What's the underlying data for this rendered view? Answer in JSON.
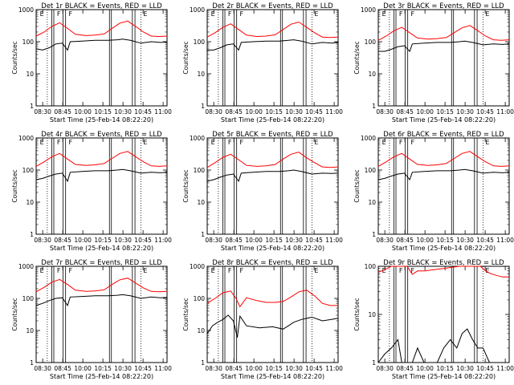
{
  "figure": {
    "xlabel": "Start Time (25-Feb-14 08:22:20)",
    "ylabel": "Counts/sec",
    "x_ticks": [
      "08:30",
      "08:45",
      "10:00",
      "10:15",
      "10:30",
      "10:45",
      "11:00"
    ],
    "y_ticks": [
      "1",
      "10",
      "100",
      "1000"
    ],
    "colors": {
      "events": "#000000",
      "lld": "#ff0000",
      "axes": "#000000",
      "background": "#ffffff"
    }
  },
  "chart_data": [
    {
      "type": "line",
      "title": "Det 1r BLACK = Events, RED = LLD",
      "x_ticks": [
        "08:30",
        "08:45",
        "10:00",
        "10:15",
        "10:30",
        "10:45",
        "11:00"
      ],
      "ylim": [
        1,
        1000
      ],
      "yscale": "log",
      "markers": [
        "E",
        "F",
        "F",
        "E"
      ],
      "series": [
        {
          "name": "Events",
          "color": "#000000",
          "x": [
            0.0,
            0.05,
            0.1,
            0.15,
            0.2,
            0.24,
            0.26,
            0.35,
            0.45,
            0.55,
            0.62,
            0.66,
            0.72,
            0.8,
            0.88,
            0.95,
            1.0
          ],
          "y": [
            60,
            55,
            65,
            85,
            90,
            55,
            100,
            105,
            110,
            110,
            115,
            120,
            110,
            90,
            100,
            95,
            98
          ]
        },
        {
          "name": "LLD",
          "color": "#ff0000",
          "x": [
            0.0,
            0.06,
            0.12,
            0.18,
            0.24,
            0.3,
            0.38,
            0.45,
            0.52,
            0.58,
            0.64,
            0.7,
            0.76,
            0.82,
            0.88,
            0.94,
            1.0
          ],
          "y": [
            150,
            200,
            300,
            390,
            260,
            170,
            155,
            160,
            175,
            260,
            380,
            440,
            300,
            200,
            150,
            145,
            150
          ]
        }
      ]
    },
    {
      "type": "line",
      "title": "Det 2r BLACK = Events, RED = LLD",
      "x_ticks": [
        "08:30",
        "08:45",
        "10:00",
        "10:15",
        "10:30",
        "10:45",
        "11:00"
      ],
      "ylim": [
        1,
        1000
      ],
      "yscale": "log",
      "markers": [
        "E",
        "F",
        "F",
        "E"
      ],
      "series": [
        {
          "name": "Events",
          "color": "#000000",
          "x": [
            0.0,
            0.05,
            0.1,
            0.15,
            0.2,
            0.24,
            0.26,
            0.35,
            0.45,
            0.55,
            0.62,
            0.66,
            0.72,
            0.8,
            0.88,
            0.95,
            1.0
          ],
          "y": [
            55,
            55,
            65,
            80,
            85,
            55,
            95,
            100,
            105,
            105,
            110,
            115,
            105,
            85,
            95,
            90,
            95
          ]
        },
        {
          "name": "LLD",
          "color": "#ff0000",
          "x": [
            0.0,
            0.06,
            0.12,
            0.18,
            0.24,
            0.3,
            0.38,
            0.45,
            0.52,
            0.58,
            0.64,
            0.7,
            0.76,
            0.82,
            0.88,
            0.94,
            1.0
          ],
          "y": [
            140,
            190,
            280,
            360,
            240,
            160,
            145,
            150,
            165,
            240,
            350,
            410,
            280,
            190,
            140,
            135,
            140
          ]
        }
      ]
    },
    {
      "type": "line",
      "title": "Det 3r BLACK = Events, RED = LLD",
      "x_ticks": [
        "08:30",
        "08:45",
        "10:00",
        "10:15",
        "10:30",
        "10:45",
        "11:00"
      ],
      "ylim": [
        1,
        1000
      ],
      "yscale": "log",
      "markers": [
        "E",
        "F",
        "F",
        "E"
      ],
      "series": [
        {
          "name": "Events",
          "color": "#000000",
          "x": [
            0.0,
            0.05,
            0.1,
            0.15,
            0.2,
            0.24,
            0.26,
            0.35,
            0.45,
            0.55,
            0.62,
            0.66,
            0.72,
            0.8,
            0.88,
            0.95,
            1.0
          ],
          "y": [
            50,
            50,
            58,
            70,
            75,
            50,
            85,
            90,
            95,
            95,
            100,
            105,
            95,
            80,
            85,
            82,
            85
          ]
        },
        {
          "name": "LLD",
          "color": "#ff0000",
          "x": [
            0.0,
            0.06,
            0.12,
            0.18,
            0.24,
            0.3,
            0.38,
            0.45,
            0.52,
            0.58,
            0.64,
            0.7,
            0.76,
            0.82,
            0.88,
            0.94,
            1.0
          ],
          "y": [
            110,
            150,
            220,
            280,
            190,
            130,
            120,
            125,
            135,
            190,
            270,
            320,
            220,
            150,
            115,
            110,
            115
          ]
        }
      ]
    },
    {
      "type": "line",
      "title": "Det 4r BLACK = Events, RED = LLD",
      "x_ticks": [
        "08:30",
        "08:45",
        "10:00",
        "10:15",
        "10:30",
        "10:45",
        "11:00"
      ],
      "ylim": [
        1,
        1000
      ],
      "yscale": "log",
      "markers": [
        "E",
        "F",
        "F",
        "E"
      ],
      "series": [
        {
          "name": "Events",
          "color": "#000000",
          "x": [
            0.0,
            0.05,
            0.1,
            0.15,
            0.2,
            0.24,
            0.26,
            0.35,
            0.45,
            0.55,
            0.62,
            0.66,
            0.72,
            0.8,
            0.88,
            0.95,
            1.0
          ],
          "y": [
            50,
            55,
            65,
            75,
            80,
            45,
            85,
            90,
            95,
            95,
            100,
            105,
            95,
            80,
            85,
            82,
            85
          ]
        },
        {
          "name": "LLD",
          "color": "#ff0000",
          "x": [
            0.0,
            0.06,
            0.12,
            0.18,
            0.24,
            0.3,
            0.38,
            0.45,
            0.52,
            0.58,
            0.64,
            0.7,
            0.76,
            0.82,
            0.88,
            0.94,
            1.0
          ],
          "y": [
            130,
            180,
            260,
            330,
            220,
            150,
            140,
            145,
            160,
            230,
            330,
            380,
            260,
            180,
            135,
            130,
            135
          ]
        }
      ]
    },
    {
      "type": "line",
      "title": "Det 5r BLACK = Events, RED = LLD",
      "x_ticks": [
        "08:30",
        "08:45",
        "10:00",
        "10:15",
        "10:30",
        "10:45",
        "11:00"
      ],
      "ylim": [
        1,
        1000
      ],
      "yscale": "log",
      "markers": [
        "E",
        "F",
        "F",
        "E"
      ],
      "series": [
        {
          "name": "Events",
          "color": "#000000",
          "x": [
            0.0,
            0.05,
            0.1,
            0.15,
            0.2,
            0.24,
            0.26,
            0.35,
            0.45,
            0.55,
            0.62,
            0.66,
            0.72,
            0.8,
            0.88,
            0.95,
            1.0
          ],
          "y": [
            45,
            50,
            60,
            70,
            75,
            45,
            80,
            85,
            90,
            90,
            95,
            100,
            90,
            75,
            80,
            78,
            80
          ]
        },
        {
          "name": "LLD",
          "color": "#ff0000",
          "x": [
            0.0,
            0.06,
            0.12,
            0.18,
            0.24,
            0.3,
            0.38,
            0.45,
            0.52,
            0.58,
            0.64,
            0.7,
            0.76,
            0.82,
            0.88,
            0.94,
            1.0
          ],
          "y": [
            120,
            170,
            250,
            310,
            210,
            140,
            130,
            135,
            150,
            220,
            310,
            360,
            240,
            170,
            125,
            120,
            125
          ]
        }
      ]
    },
    {
      "type": "line",
      "title": "Det 6r BLACK = Events, RED = LLD",
      "x_ticks": [
        "08:30",
        "08:45",
        "10:00",
        "10:15",
        "10:30",
        "10:45",
        "11:00"
      ],
      "ylim": [
        1,
        1000
      ],
      "yscale": "log",
      "markers": [
        "E",
        "F",
        "F",
        "E"
      ],
      "series": [
        {
          "name": "Events",
          "color": "#000000",
          "x": [
            0.0,
            0.05,
            0.1,
            0.15,
            0.2,
            0.24,
            0.26,
            0.35,
            0.45,
            0.55,
            0.62,
            0.66,
            0.72,
            0.8,
            0.88,
            0.95,
            1.0
          ],
          "y": [
            50,
            55,
            65,
            75,
            80,
            50,
            85,
            90,
            95,
            95,
            100,
            105,
            95,
            80,
            85,
            82,
            85
          ]
        },
        {
          "name": "LLD",
          "color": "#ff0000",
          "x": [
            0.0,
            0.06,
            0.12,
            0.18,
            0.24,
            0.3,
            0.38,
            0.45,
            0.52,
            0.58,
            0.64,
            0.7,
            0.76,
            0.82,
            0.88,
            0.94,
            1.0
          ],
          "y": [
            130,
            180,
            260,
            330,
            220,
            150,
            140,
            145,
            160,
            230,
            330,
            380,
            260,
            180,
            135,
            130,
            135
          ]
        }
      ]
    },
    {
      "type": "line",
      "title": "Det 7r BLACK = Events, RED = LLD",
      "x_ticks": [
        "08:30",
        "08:45",
        "10:00",
        "10:15",
        "10:30",
        "10:45",
        "11:00"
      ],
      "ylim": [
        1,
        1000
      ],
      "yscale": "log",
      "markers": [
        "E",
        "F",
        "F",
        "E"
      ],
      "series": [
        {
          "name": "Events",
          "color": "#000000",
          "x": [
            0.0,
            0.05,
            0.1,
            0.15,
            0.2,
            0.24,
            0.26,
            0.35,
            0.45,
            0.55,
            0.62,
            0.66,
            0.72,
            0.8,
            0.88,
            0.95,
            1.0
          ],
          "y": [
            60,
            70,
            85,
            100,
            105,
            60,
            110,
            115,
            120,
            120,
            125,
            130,
            120,
            100,
            110,
            105,
            108
          ]
        },
        {
          "name": "LLD",
          "color": "#ff0000",
          "x": [
            0.0,
            0.06,
            0.12,
            0.18,
            0.24,
            0.3,
            0.38,
            0.45,
            0.52,
            0.58,
            0.64,
            0.7,
            0.76,
            0.82,
            0.88,
            0.94,
            1.0
          ],
          "y": [
            160,
            220,
            320,
            390,
            270,
            180,
            165,
            170,
            185,
            270,
            380,
            430,
            300,
            210,
            165,
            160,
            165
          ]
        }
      ]
    },
    {
      "type": "line",
      "title": "Det 8r BLACK = Events, RED = LLD",
      "x_ticks": [
        "08:30",
        "08:45",
        "10:00",
        "10:15",
        "10:30",
        "10:45",
        "11:00"
      ],
      "ylim": [
        1,
        1000
      ],
      "yscale": "log",
      "markers": [
        "E",
        "F",
        "F",
        "E"
      ],
      "series": [
        {
          "name": "Events",
          "color": "#000000",
          "x": [
            0.0,
            0.04,
            0.08,
            0.12,
            0.16,
            0.2,
            0.23,
            0.25,
            0.3,
            0.4,
            0.5,
            0.58,
            0.62,
            0.66,
            0.72,
            0.8,
            0.88,
            0.95,
            1.0
          ],
          "y": [
            8,
            14,
            18,
            22,
            30,
            20,
            6,
            28,
            14,
            12,
            13,
            11,
            14,
            18,
            22,
            26,
            20,
            22,
            24
          ]
        },
        {
          "name": "LLD",
          "color": "#ff0000",
          "x": [
            0.0,
            0.06,
            0.12,
            0.18,
            0.22,
            0.25,
            0.3,
            0.38,
            0.45,
            0.52,
            0.58,
            0.64,
            0.7,
            0.76,
            0.82,
            0.88,
            0.94,
            1.0
          ],
          "y": [
            70,
            100,
            150,
            170,
            100,
            55,
            105,
            85,
            75,
            75,
            80,
            110,
            160,
            180,
            120,
            70,
            60,
            60
          ]
        }
      ]
    },
    {
      "type": "line",
      "title": "Det 9r BLACK = Events, RED = LLD",
      "x_ticks": [
        "08:30",
        "08:45",
        "10:00",
        "10:15",
        "10:30",
        "10:45",
        "11:00"
      ],
      "ylim": [
        1,
        100
      ],
      "yscale": "log",
      "markers": [
        "E",
        "F",
        "F",
        "E"
      ],
      "series": [
        {
          "name": "Events",
          "color": "#000000",
          "x": [
            0.0,
            0.05,
            0.1,
            0.15,
            0.18,
            0.22,
            0.26,
            0.3,
            0.35,
            0.4,
            0.45,
            0.5,
            0.55,
            0.6,
            0.64,
            0.68,
            0.72,
            0.76,
            0.8,
            0.85,
            0.9,
            0.95,
            1.0
          ],
          "y": [
            1,
            1.5,
            2,
            3,
            1,
            1,
            1,
            2,
            1,
            1,
            1,
            2,
            3,
            2,
            4,
            5,
            3,
            2,
            2,
            1,
            1,
            1,
            1
          ]
        },
        {
          "name": "LLD",
          "color": "#ff0000",
          "x": [
            0.0,
            0.05,
            0.1,
            0.14,
            0.18,
            0.22,
            0.26,
            0.3,
            0.36,
            0.42,
            0.5,
            0.56,
            0.62,
            0.68,
            0.74,
            0.78,
            0.82,
            0.86,
            0.9,
            0.95,
            1.0
          ],
          "y": [
            75,
            85,
            100,
            100,
            100,
            100,
            68,
            80,
            80,
            85,
            90,
            95,
            100,
            100,
            100,
            100,
            80,
            70,
            65,
            60,
            60
          ]
        }
      ]
    }
  ]
}
